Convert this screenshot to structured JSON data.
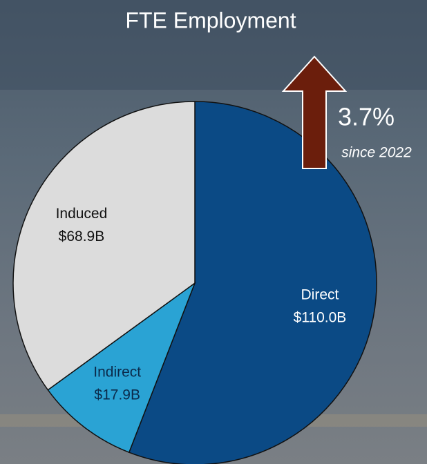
{
  "chart_data": {
    "type": "pie",
    "title": "FTE Employment",
    "categories": [
      "Direct",
      "Indirect",
      "Induced"
    ],
    "values": [
      110.0,
      17.9,
      68.9
    ],
    "value_labels": [
      "$110.0B",
      "$17.9B",
      "$68.9B"
    ],
    "colors": [
      "#0b4a85",
      "#2aa3d4",
      "#dcdcdc"
    ],
    "annotation": {
      "value_label": "3.7%",
      "note": "since 2022"
    }
  }
}
